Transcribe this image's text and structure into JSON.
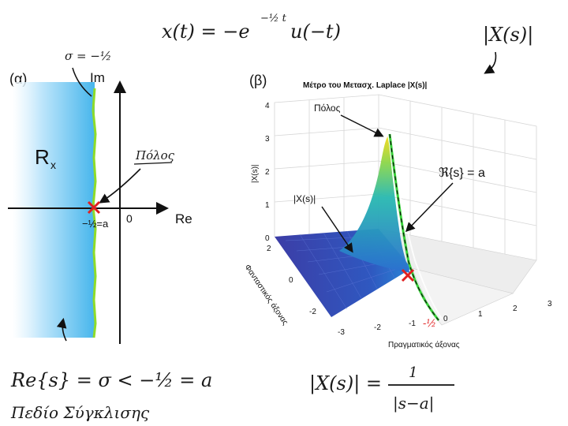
{
  "formulas": {
    "top_lhs": "x(t) = −e",
    "top_exp": "−½ t",
    "top_rhs": "u(−t)",
    "roc_condition": "Re{s} = σ < −½ = a",
    "roc_caption": "Πεδίο Σύγκλισης",
    "magnitude_lhs": "|X(s)| =",
    "magnitude_num": "1",
    "magnitude_den": "|s−a|",
    "magnitude_note": "|X(s)|"
  },
  "panel_a": {
    "label": "(α)",
    "sigma_note": "σ = −½",
    "im_label": "Im",
    "re_label": "Re",
    "region_label": "R",
    "region_sub": "x",
    "pole_note": "Πόλος",
    "origin_label": "0",
    "pole_value": "−½=a",
    "colors": {
      "region": "#5bc0ee",
      "boundary": "#8fdc2a",
      "pole": "#e02020"
    }
  },
  "panel_b": {
    "label": "(β)",
    "title": "Μέτρο του Μετασχ. Laplace |X(s)|",
    "pole_label": "Πόλος",
    "re_eq_label": "ℜ{s} = a",
    "surface_label": "|X(s)|",
    "z_axis_label": "|X(s)|",
    "y_axis_label": "Φανταστικός άξονας",
    "x_axis_label": "Πραγματικός άξονας",
    "z_ticks": [
      "0",
      "1",
      "2",
      "3",
      "4"
    ],
    "x_ticks": [
      "-3",
      "-2",
      "-1",
      "0",
      "1",
      "2",
      "3"
    ],
    "y_ticks": [
      "2",
      "0",
      "-2"
    ],
    "red_tick": "-½",
    "colors": {
      "surface_low": "#2c2f8f",
      "surface_high": "#f0d818",
      "boundary": "#39d23a",
      "pole": "#e02020"
    }
  }
}
